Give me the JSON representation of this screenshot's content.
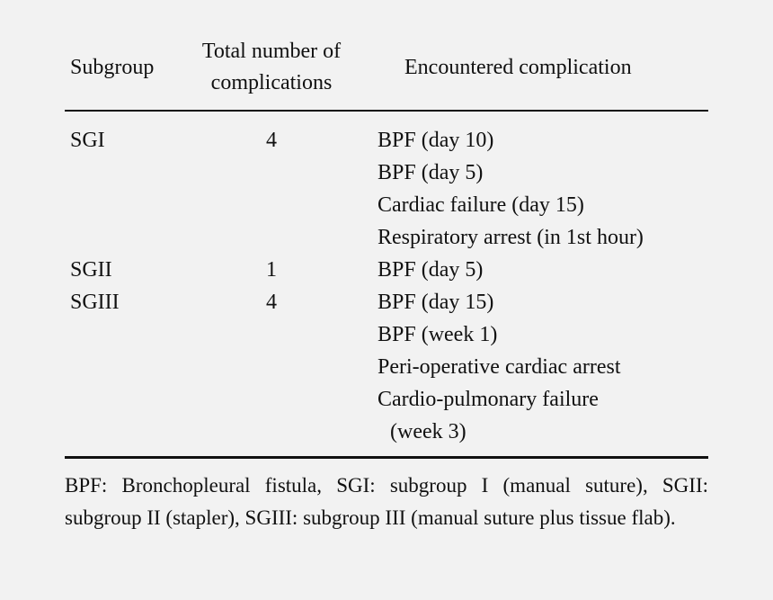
{
  "table": {
    "headers": {
      "subgroup": "Subgroup",
      "total_line1": "Total number of",
      "total_line2": "complications",
      "encountered": "Encountered complication"
    },
    "rows": [
      {
        "subgroup": "SGI",
        "total": "4",
        "complication": "BPF (day 10)"
      },
      {
        "subgroup": "",
        "total": "",
        "complication": "BPF (day 5)"
      },
      {
        "subgroup": "",
        "total": "",
        "complication": "Cardiac failure (day 15)"
      },
      {
        "subgroup": "",
        "total": "",
        "complication": "Respiratory arrest (in 1st hour)"
      },
      {
        "subgroup": "SGII",
        "total": "1",
        "complication": "BPF (day 5)"
      },
      {
        "subgroup": "SGIII",
        "total": "4",
        "complication": "BPF (day 15)"
      },
      {
        "subgroup": "",
        "total": "",
        "complication": "BPF (week 1)"
      },
      {
        "subgroup": "",
        "total": "",
        "complication": "Peri-operative cardiac arrest"
      },
      {
        "subgroup": "",
        "total": "",
        "complication": "Cardio-pulmonary failure"
      },
      {
        "subgroup": "",
        "total": "",
        "complication": "(week 3)"
      }
    ]
  },
  "footnote": "BPF: Bronchopleural fistula, SGI: subgroup I (manual suture), SGII: subgroup II (stapler), SGIII: subgroup III (manual suture plus tissue flab)."
}
